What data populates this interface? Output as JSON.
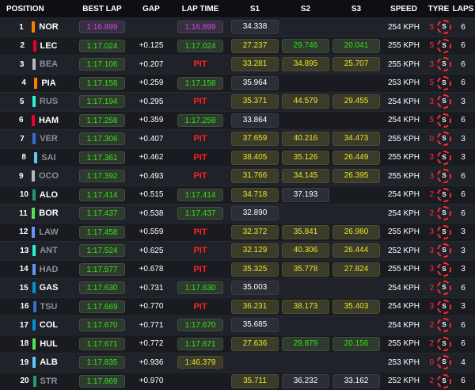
{
  "headers": [
    "POSITION",
    "BEST LAP",
    "GAP",
    "LAP TIME",
    "S1",
    "S2",
    "S3",
    "SPEED",
    "TYRE",
    "LAPS"
  ],
  "tyre_compound_letter": "S",
  "rows": [
    {
      "pos": "1",
      "driver": "NOR",
      "team_color": "#ff8000",
      "retired": false,
      "best_lap": "1:16.899",
      "best_style": "purple",
      "gap": "",
      "lap_time": "1:16.899",
      "lap_style": "purple",
      "s1": "34.338",
      "s1_style": "white",
      "s2": "",
      "s2_style": "",
      "s3": "",
      "s3_style": "",
      "speed": "254 KPH",
      "tyre_age": "5",
      "laps": "6"
    },
    {
      "pos": "2",
      "driver": "LEC",
      "team_color": "#e8002d",
      "retired": false,
      "best_lap": "1:17.024",
      "best_style": "green",
      "gap": "+0.125",
      "lap_time": "1:17.024",
      "lap_style": "green",
      "s1": "27.237",
      "s1_style": "yellow",
      "s2": "29.746",
      "s2_style": "green",
      "s3": "20.041",
      "s3_style": "green",
      "speed": "255 KPH",
      "tyre_age": "5",
      "laps": "6"
    },
    {
      "pos": "3",
      "driver": "BEA",
      "team_color": "#b6babd",
      "retired": true,
      "best_lap": "1:17.106",
      "best_style": "green",
      "gap": "+0.207",
      "lap_time": "PIT",
      "lap_style": "pit",
      "s1": "33.281",
      "s1_style": "yellow",
      "s2": "34.895",
      "s2_style": "yellow",
      "s3": "25.707",
      "s3_style": "yellow",
      "speed": "255 KPH",
      "tyre_age": "3",
      "laps": "6"
    },
    {
      "pos": "4",
      "driver": "PIA",
      "team_color": "#ff8000",
      "retired": false,
      "best_lap": "1:17.158",
      "best_style": "green",
      "gap": "+0.259",
      "lap_time": "1:17.158",
      "lap_style": "green",
      "s1": "35.964",
      "s1_style": "white",
      "s2": "",
      "s2_style": "",
      "s3": "",
      "s3_style": "",
      "speed": "253 KPH",
      "tyre_age": "5",
      "laps": "6"
    },
    {
      "pos": "5",
      "driver": "RUS",
      "team_color": "#27f4d2",
      "retired": true,
      "best_lap": "1:17.194",
      "best_style": "green",
      "gap": "+0.295",
      "lap_time": "PIT",
      "lap_style": "pit",
      "s1": "35.371",
      "s1_style": "yellow",
      "s2": "44.579",
      "s2_style": "yellow",
      "s3": "29.455",
      "s3_style": "yellow",
      "speed": "254 KPH",
      "tyre_age": "3",
      "laps": "3"
    },
    {
      "pos": "6",
      "driver": "HAM",
      "team_color": "#e8002d",
      "retired": false,
      "best_lap": "1:17.258",
      "best_style": "green",
      "gap": "+0.359",
      "lap_time": "1:17.258",
      "lap_style": "green",
      "s1": "33.864",
      "s1_style": "white",
      "s2": "",
      "s2_style": "",
      "s3": "",
      "s3_style": "",
      "speed": "254 KPH",
      "tyre_age": "5",
      "laps": "6"
    },
    {
      "pos": "7",
      "driver": "VER",
      "team_color": "#3671c6",
      "retired": true,
      "best_lap": "1:17.306",
      "best_style": "green",
      "gap": "+0.407",
      "lap_time": "PIT",
      "lap_style": "pit",
      "s1": "37.659",
      "s1_style": "yellow",
      "s2": "40.216",
      "s2_style": "yellow",
      "s3": "34.473",
      "s3_style": "yellow",
      "speed": "255 KPH",
      "tyre_age": "0",
      "laps": "3"
    },
    {
      "pos": "8",
      "driver": "SAI",
      "team_color": "#64c4ff",
      "retired": true,
      "best_lap": "1:17.361",
      "best_style": "green",
      "gap": "+0.462",
      "lap_time": "PIT",
      "lap_style": "pit",
      "s1": "38.405",
      "s1_style": "yellow",
      "s2": "35.126",
      "s2_style": "yellow",
      "s3": "26.449",
      "s3_style": "yellow",
      "speed": "255 KPH",
      "tyre_age": "3",
      "laps": "3"
    },
    {
      "pos": "9",
      "driver": "OCO",
      "team_color": "#b6babd",
      "retired": true,
      "best_lap": "1:17.392",
      "best_style": "green",
      "gap": "+0.493",
      "lap_time": "PIT",
      "lap_style": "pit",
      "s1": "31.766",
      "s1_style": "yellow",
      "s2": "34.145",
      "s2_style": "yellow",
      "s3": "26.395",
      "s3_style": "yellow",
      "speed": "255 KPH",
      "tyre_age": "3",
      "laps": "6"
    },
    {
      "pos": "10",
      "driver": "ALO",
      "team_color": "#229971",
      "retired": false,
      "best_lap": "1:17.414",
      "best_style": "green",
      "gap": "+0.515",
      "lap_time": "1:17.414",
      "lap_style": "green",
      "s1": "34.718",
      "s1_style": "yellow",
      "s2": "37.193",
      "s2_style": "white",
      "s3": "",
      "s3_style": "",
      "speed": "254 KPH",
      "tyre_age": "2",
      "laps": "6"
    },
    {
      "pos": "11",
      "driver": "BOR",
      "team_color": "#52e252",
      "retired": false,
      "best_lap": "1:17.437",
      "best_style": "green",
      "gap": "+0.538",
      "lap_time": "1:17.437",
      "lap_style": "green",
      "s1": "32.890",
      "s1_style": "white",
      "s2": "",
      "s2_style": "",
      "s3": "",
      "s3_style": "",
      "speed": "254 KPH",
      "tyre_age": "2",
      "laps": "6"
    },
    {
      "pos": "12",
      "driver": "LAW",
      "team_color": "#6692ff",
      "retired": true,
      "best_lap": "1:17.458",
      "best_style": "green",
      "gap": "+0.559",
      "lap_time": "PIT",
      "lap_style": "pit",
      "s1": "32.372",
      "s1_style": "yellow",
      "s2": "35.841",
      "s2_style": "yellow",
      "s3": "26.980",
      "s3_style": "yellow",
      "speed": "255 KPH",
      "tyre_age": "3",
      "laps": "3"
    },
    {
      "pos": "13",
      "driver": "ANT",
      "team_color": "#27f4d2",
      "retired": true,
      "best_lap": "1:17.524",
      "best_style": "green",
      "gap": "+0.625",
      "lap_time": "PIT",
      "lap_style": "pit",
      "s1": "32.129",
      "s1_style": "yellow",
      "s2": "40.306",
      "s2_style": "yellow",
      "s3": "26.444",
      "s3_style": "yellow",
      "speed": "252 KPH",
      "tyre_age": "3",
      "laps": "3"
    },
    {
      "pos": "14",
      "driver": "HAD",
      "team_color": "#6692ff",
      "retired": true,
      "best_lap": "1:17.577",
      "best_style": "green",
      "gap": "+0.678",
      "lap_time": "PIT",
      "lap_style": "pit",
      "s1": "35.325",
      "s1_style": "yellow",
      "s2": "35.778",
      "s2_style": "yellow",
      "s3": "27.824",
      "s3_style": "yellow",
      "speed": "255 KPH",
      "tyre_age": "3",
      "laps": "3"
    },
    {
      "pos": "15",
      "driver": "GAS",
      "team_color": "#0093cc",
      "retired": false,
      "best_lap": "1:17.630",
      "best_style": "green",
      "gap": "+0.731",
      "lap_time": "1:17.630",
      "lap_style": "green",
      "s1": "35.003",
      "s1_style": "white",
      "s2": "",
      "s2_style": "",
      "s3": "",
      "s3_style": "",
      "speed": "254 KPH",
      "tyre_age": "2",
      "laps": "6"
    },
    {
      "pos": "16",
      "driver": "TSU",
      "team_color": "#3671c6",
      "retired": true,
      "best_lap": "1:17.669",
      "best_style": "green",
      "gap": "+0.770",
      "lap_time": "PIT",
      "lap_style": "pit",
      "s1": "36.231",
      "s1_style": "yellow",
      "s2": "38.173",
      "s2_style": "yellow",
      "s3": "35.403",
      "s3_style": "yellow",
      "speed": "254 KPH",
      "tyre_age": "3",
      "laps": "3"
    },
    {
      "pos": "17",
      "driver": "COL",
      "team_color": "#0093cc",
      "retired": false,
      "best_lap": "1:17.670",
      "best_style": "green",
      "gap": "+0.771",
      "lap_time": "1:17.670",
      "lap_style": "green",
      "s1": "35.685",
      "s1_style": "white",
      "s2": "",
      "s2_style": "",
      "s3": "",
      "s3_style": "",
      "speed": "254 KPH",
      "tyre_age": "2",
      "laps": "6"
    },
    {
      "pos": "18",
      "driver": "HUL",
      "team_color": "#52e252",
      "retired": false,
      "best_lap": "1:17.671",
      "best_style": "green",
      "gap": "+0.772",
      "lap_time": "1:17.671",
      "lap_style": "green",
      "s1": "27.636",
      "s1_style": "yellow",
      "s2": "29.879",
      "s2_style": "green",
      "s3": "20.156",
      "s3_style": "green",
      "speed": "255 KPH",
      "tyre_age": "2",
      "laps": "6"
    },
    {
      "pos": "19",
      "driver": "ALB",
      "team_color": "#64c4ff",
      "retired": false,
      "best_lap": "1:17.835",
      "best_style": "green",
      "gap": "+0.936",
      "lap_time": "1:46.379",
      "lap_style": "yellow",
      "s1": "",
      "s1_style": "",
      "s2": "",
      "s2_style": "",
      "s3": "",
      "s3_style": "",
      "speed": "253 KPH",
      "tyre_age": "0",
      "laps": "4"
    },
    {
      "pos": "20",
      "driver": "STR",
      "team_color": "#229971",
      "retired": true,
      "best_lap": "1:17.869",
      "best_style": "green",
      "gap": "+0.970",
      "lap_time": "",
      "lap_style": "",
      "s1": "35.711",
      "s1_style": "yellow",
      "s2": "36.232",
      "s2_style": "white",
      "s3": "33.162",
      "s3_style": "white",
      "speed": "252 KPH",
      "tyre_age": "2",
      "laps": "6"
    }
  ]
}
